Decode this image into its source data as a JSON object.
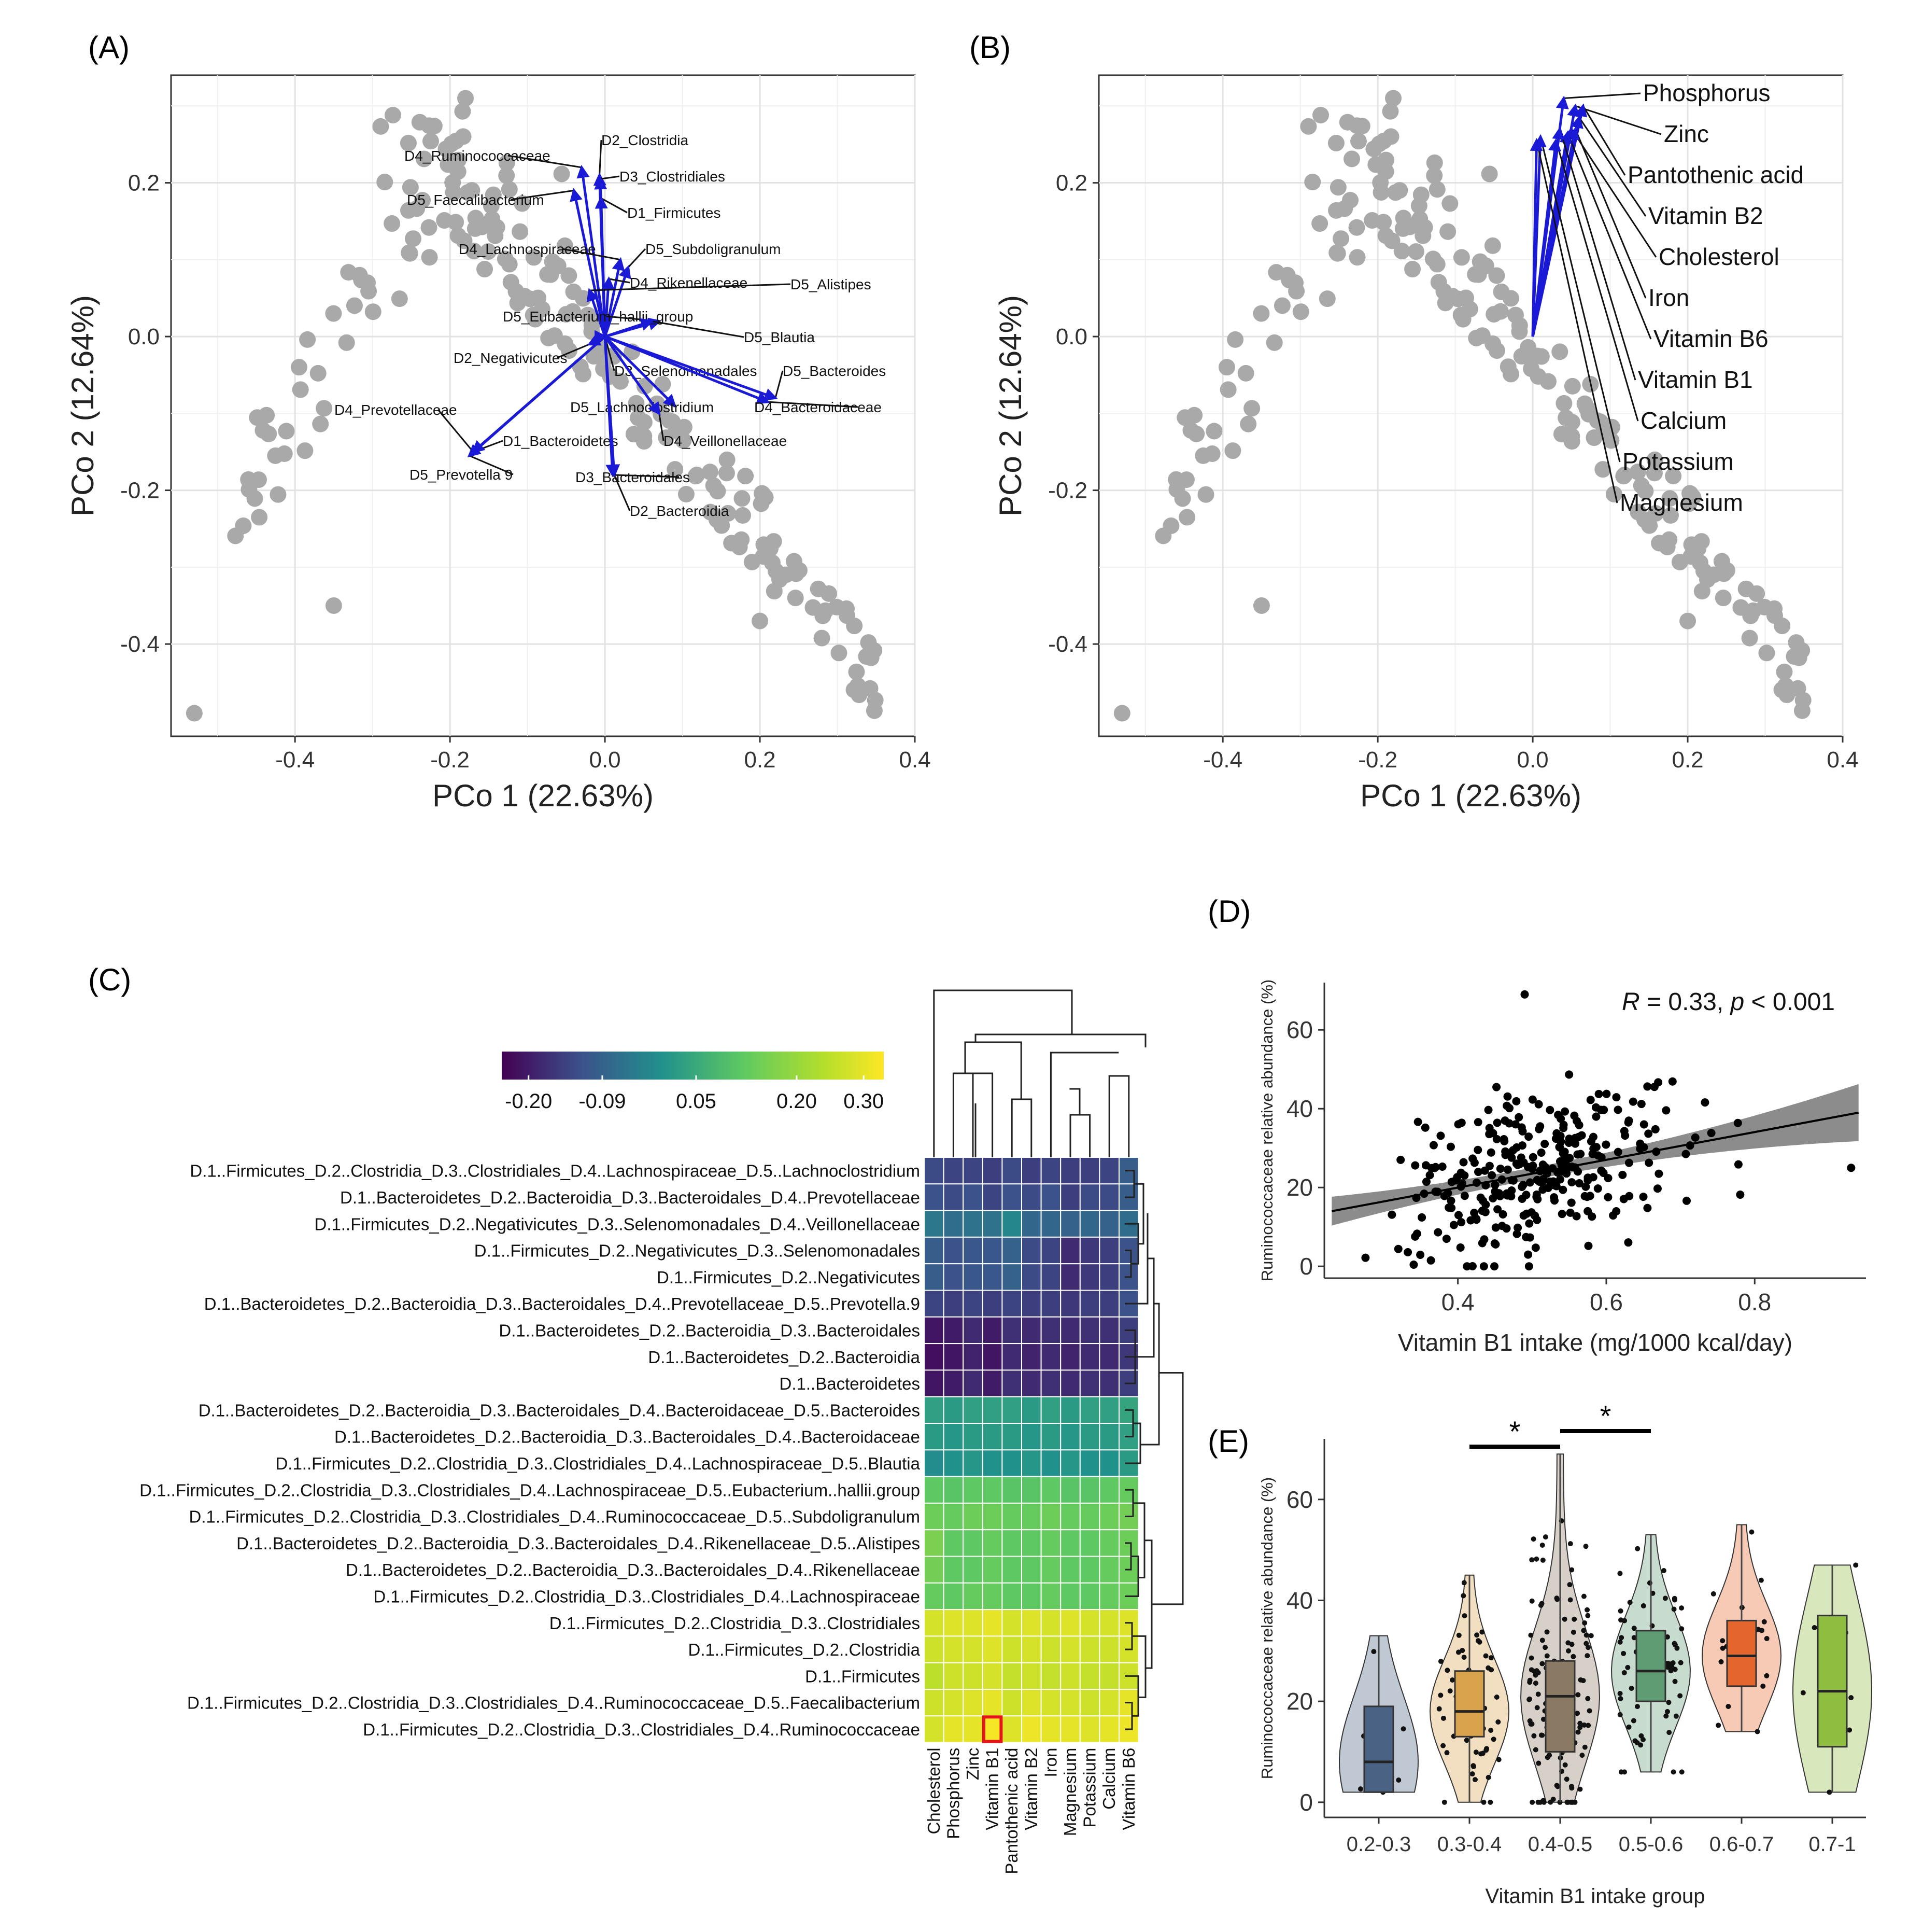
{
  "chart_data": [
    {
      "panel": "(A)",
      "type": "scatter",
      "xlabel": "PCo 1 (22.63%)",
      "ylabel": "PCo 2 (12.64%)",
      "xlim": [
        -0.56,
        0.4
      ],
      "ylim": [
        -0.52,
        0.34
      ],
      "xticks": [
        "-0.4",
        "-0.2",
        "0.0",
        "0.2",
        "0.4"
      ],
      "xtick_values": [
        -0.4,
        -0.2,
        0.0,
        0.2,
        0.4
      ],
      "yticks": [
        "-0.4",
        "-0.2",
        "0.0",
        "0.2"
      ],
      "ytick_values": [
        -0.4,
        -0.2,
        0.0,
        0.2
      ],
      "vectors": [
        {
          "label": "D2_Clostridia",
          "x": -0.007,
          "y": 0.21
        },
        {
          "label": "D3_Clostridiales",
          "x": -0.006,
          "y": 0.205
        },
        {
          "label": "D4_Ruminococcaceae",
          "x": -0.03,
          "y": 0.22
        },
        {
          "label": "D5_Faecalibacterium",
          "x": -0.04,
          "y": 0.19
        },
        {
          "label": "D1_Firmicutes",
          "x": -0.005,
          "y": 0.18
        },
        {
          "label": "D4_Lachnospiraceae",
          "x": 0.02,
          "y": 0.1
        },
        {
          "label": "D5_Subdoligranulum",
          "x": 0.03,
          "y": 0.09
        },
        {
          "label": "D4_Rikenellaceae",
          "x": 0.005,
          "y": 0.075
        },
        {
          "label": "D5_Alistipes",
          "x": -0.02,
          "y": 0.06
        },
        {
          "label": "D5_Eubacterium_hallii_group",
          "x": 0.07,
          "y": 0.02
        },
        {
          "label": "D5_Blautia",
          "x": 0.06,
          "y": 0.02
        },
        {
          "label": "D2_Negativicutes",
          "x": -0.02,
          "y": -0.01
        },
        {
          "label": "D3_Selenomonadales",
          "x": 0.0,
          "y": 0.0
        },
        {
          "label": "D5_Bacteroides",
          "x": 0.22,
          "y": -0.08
        },
        {
          "label": "D4_Prevotellaceae",
          "x": -0.17,
          "y": -0.15
        },
        {
          "label": "D5_Lachnoclostridium",
          "x": 0.09,
          "y": -0.09
        },
        {
          "label": "D4_Bacteroidaceae",
          "x": 0.21,
          "y": -0.085
        },
        {
          "label": "D1_Bacteroidetes",
          "x": -0.17,
          "y": -0.15
        },
        {
          "label": "D4_Veillonellaceae",
          "x": 0.07,
          "y": -0.1
        },
        {
          "label": "D5_Prevotella 9",
          "x": -0.175,
          "y": -0.155
        },
        {
          "label": "D3_Bacteroidales",
          "x": 0.01,
          "y": -0.18
        },
        {
          "label": "D2_Bacteroidia",
          "x": 0.012,
          "y": -0.18
        }
      ]
    },
    {
      "panel": "(B)",
      "type": "scatter",
      "xlabel": "PCo 1 (22.63%)",
      "ylabel": "PCo 2 (12.64%)",
      "xlim": [
        -0.56,
        0.4
      ],
      "ylim": [
        -0.52,
        0.34
      ],
      "xticks": [
        "-0.4",
        "-0.2",
        "0.0",
        "0.2",
        "0.4"
      ],
      "xtick_values": [
        -0.4,
        -0.2,
        0.0,
        0.2,
        0.4
      ],
      "yticks": [
        "-0.4",
        "-0.2",
        "0.0",
        "0.2"
      ],
      "ytick_values": [
        -0.4,
        -0.2,
        0.0,
        0.2
      ],
      "vectors": [
        {
          "label": "Phosphorus",
          "x": 0.04,
          "y": 0.31
        },
        {
          "label": "Zinc",
          "x": 0.055,
          "y": 0.3
        },
        {
          "label": "Pantothenic acid",
          "x": 0.065,
          "y": 0.3
        },
        {
          "label": "Vitamin B2",
          "x": 0.06,
          "y": 0.285
        },
        {
          "label": "Cholesterol",
          "x": 0.05,
          "y": 0.27
        },
        {
          "label": "Iron",
          "x": 0.055,
          "y": 0.27
        },
        {
          "label": "Vitamin B6",
          "x": 0.045,
          "y": 0.265
        },
        {
          "label": "Vitamin B1",
          "x": 0.035,
          "y": 0.27
        },
        {
          "label": "Calcium",
          "x": 0.03,
          "y": 0.255
        },
        {
          "label": "Potassium",
          "x": 0.01,
          "y": 0.26
        },
        {
          "label": "Magnesium",
          "x": 0.005,
          "y": 0.255
        }
      ]
    },
    {
      "panel": "(C)",
      "type": "heatmap",
      "colorbar_ticks": [
        "-0.20",
        "-0.09",
        "0.05",
        "0.20",
        "0.30"
      ],
      "colorbar_range": [
        -0.24,
        0.33
      ],
      "columns": [
        "Cholesterol",
        "Phosphorus",
        "Zinc",
        "Vitamin B1",
        "Pantothenic acid",
        "Vitamin B2",
        "Iron",
        "Magnesium",
        "Potassium",
        "Calcium",
        "Vitamin B6"
      ],
      "rows": [
        "D.1..Firmicutes_D.2..Clostridia_D.3..Clostridiales_D.4..Lachnospiraceae_D.5..Lachnoclostridium",
        "D.1..Bacteroidetes_D.2..Bacteroidia_D.3..Bacteroidales_D.4..Prevotellaceae",
        "D.1..Firmicutes_D.2..Negativicutes_D.3..Selenomonadales_D.4..Veillonellaceae",
        "D.1..Firmicutes_D.2..Negativicutes_D.3..Selenomonadales",
        "D.1..Firmicutes_D.2..Negativicutes",
        "D.1..Bacteroidetes_D.2..Bacteroidia_D.3..Bacteroidales_D.4..Prevotellaceae_D.5..Prevotella.9",
        "D.1..Bacteroidetes_D.2..Bacteroidia_D.3..Bacteroidales",
        "D.1..Bacteroidetes_D.2..Bacteroidia",
        "D.1..Bacteroidetes",
        "D.1..Bacteroidetes_D.2..Bacteroidia_D.3..Bacteroidales_D.4..Bacteroidaceae_D.5..Bacteroides",
        "D.1..Bacteroidetes_D.2..Bacteroidia_D.3..Bacteroidales_D.4..Bacteroidaceae",
        "D.1..Firmicutes_D.2..Clostridia_D.3..Clostridiales_D.4..Lachnospiraceae_D.5..Blautia",
        "D.1..Firmicutes_D.2..Clostridia_D.3..Clostridiales_D.4..Lachnospiraceae_D.5..Eubacterium..hallii.group",
        "D.1..Firmicutes_D.2..Clostridia_D.3..Clostridiales_D.4..Ruminococcaceae_D.5..Subdoligranulum",
        "D.1..Bacteroidetes_D.2..Bacteroidia_D.3..Bacteroidales_D.4..Rikenellaceae_D.5..Alistipes",
        "D.1..Bacteroidetes_D.2..Bacteroidia_D.3..Bacteroidales_D.4..Rikenellaceae",
        "D.1..Firmicutes_D.2..Clostridia_D.3..Clostridiales_D.4..Lachnospiraceae",
        "D.1..Firmicutes_D.2..Clostridia_D.3..Clostridiales",
        "D.1..Firmicutes_D.2..Clostridia",
        "D.1..Firmicutes",
        "D.1..Firmicutes_D.2..Clostridia_D.3..Clostridiales_D.4..Ruminococcaceae_D.5..Faecalibacterium",
        "D.1..Firmicutes_D.2..Clostridia_D.3..Clostridiales_D.4..Ruminococcaceae"
      ],
      "values": [
        [
          -0.13,
          -0.14,
          -0.14,
          -0.15,
          -0.13,
          -0.15,
          -0.14,
          -0.15,
          -0.15,
          -0.14,
          -0.1
        ],
        [
          -0.12,
          -0.13,
          -0.12,
          -0.14,
          -0.12,
          -0.13,
          -0.12,
          -0.15,
          -0.13,
          -0.13,
          -0.1
        ],
        [
          -0.05,
          -0.07,
          -0.06,
          -0.06,
          -0.02,
          -0.08,
          -0.08,
          -0.09,
          -0.08,
          -0.09,
          -0.07
        ],
        [
          -0.1,
          -0.12,
          -0.11,
          -0.11,
          -0.09,
          -0.13,
          -0.14,
          -0.18,
          -0.16,
          -0.15,
          -0.12
        ],
        [
          -0.1,
          -0.12,
          -0.11,
          -0.11,
          -0.09,
          -0.13,
          -0.14,
          -0.18,
          -0.16,
          -0.15,
          -0.12
        ],
        [
          -0.14,
          -0.15,
          -0.14,
          -0.15,
          -0.14,
          -0.15,
          -0.15,
          -0.16,
          -0.15,
          -0.15,
          -0.12
        ],
        [
          -0.21,
          -0.2,
          -0.18,
          -0.2,
          -0.17,
          -0.18,
          -0.17,
          -0.18,
          -0.17,
          -0.17,
          -0.15
        ],
        [
          -0.22,
          -0.21,
          -0.19,
          -0.21,
          -0.18,
          -0.19,
          -0.18,
          -0.19,
          -0.18,
          -0.18,
          -0.16
        ],
        [
          -0.21,
          -0.2,
          -0.18,
          -0.2,
          -0.17,
          -0.18,
          -0.17,
          -0.18,
          -0.17,
          -0.17,
          -0.15
        ],
        [
          0.03,
          0.02,
          0.03,
          0.03,
          0.03,
          0.02,
          0.03,
          0.02,
          0.03,
          0.03,
          0.04
        ],
        [
          0.02,
          0.01,
          0.02,
          0.02,
          0.02,
          0.01,
          0.02,
          0.01,
          0.02,
          0.02,
          0.03
        ],
        [
          -0.01,
          0.0,
          0.01,
          0.0,
          0.0,
          0.01,
          0.0,
          0.01,
          0.0,
          0.0,
          0.02
        ],
        [
          0.12,
          0.11,
          0.12,
          0.12,
          0.11,
          0.11,
          0.12,
          0.11,
          0.11,
          0.12,
          0.13
        ],
        [
          0.14,
          0.13,
          0.14,
          0.14,
          0.13,
          0.13,
          0.14,
          0.13,
          0.13,
          0.14,
          0.15
        ],
        [
          0.16,
          0.12,
          0.12,
          0.13,
          0.12,
          0.12,
          0.13,
          0.12,
          0.12,
          0.13,
          0.14
        ],
        [
          0.15,
          0.12,
          0.12,
          0.13,
          0.12,
          0.12,
          0.13,
          0.12,
          0.12,
          0.13,
          0.14
        ],
        [
          0.13,
          0.12,
          0.13,
          0.13,
          0.12,
          0.12,
          0.13,
          0.12,
          0.12,
          0.13,
          0.14
        ],
        [
          0.28,
          0.29,
          0.29,
          0.3,
          0.28,
          0.29,
          0.28,
          0.29,
          0.28,
          0.28,
          0.29
        ],
        [
          0.27,
          0.28,
          0.28,
          0.29,
          0.27,
          0.28,
          0.27,
          0.28,
          0.27,
          0.27,
          0.28
        ],
        [
          0.25,
          0.27,
          0.27,
          0.28,
          0.26,
          0.27,
          0.26,
          0.27,
          0.26,
          0.26,
          0.27
        ],
        [
          0.27,
          0.28,
          0.29,
          0.3,
          0.27,
          0.29,
          0.28,
          0.28,
          0.27,
          0.28,
          0.3
        ],
        [
          0.28,
          0.3,
          0.3,
          0.32,
          0.29,
          0.31,
          0.3,
          0.3,
          0.29,
          0.3,
          0.31
        ]
      ],
      "highlight": {
        "row": 21,
        "col": 3
      }
    },
    {
      "panel": "(D)",
      "type": "scatter",
      "xlabel": "Vitamin B1 intake (mg/1000 kcal/day)",
      "ylabel": "Ruminococcaceae relative abundance (%)",
      "annotation_r": "R",
      "annotation_rest": " = 0.33, ",
      "annotation_p": "p",
      "annotation_end": " < 0.001",
      "xlim": [
        0.22,
        0.95
      ],
      "ylim": [
        -3,
        72
      ],
      "xticks": [
        "0.4",
        "0.6",
        "0.8"
      ],
      "xtick_values": [
        0.4,
        0.6,
        0.8
      ],
      "yticks": [
        "0",
        "20",
        "40",
        "60"
      ],
      "ytick_values": [
        0,
        20,
        40,
        60
      ],
      "regression": {
        "x0": 0.23,
        "y0": 14,
        "x1": 0.94,
        "y1": 39
      }
    },
    {
      "panel": "(E)",
      "type": "box",
      "xlabel": "Vitamin B1 intake group",
      "ylabel": "Ruminococcaceae relative abundance (%)",
      "ylim": [
        -3,
        72
      ],
      "yticks": [
        "0",
        "20",
        "40",
        "60"
      ],
      "ytick_values": [
        0,
        20,
        40,
        60
      ],
      "significance": "*",
      "groups": [
        {
          "label": "0.2-0.3",
          "color": "#4a6283",
          "q1": 2,
          "median": 8,
          "q3": 19,
          "min": 2,
          "max": 33
        },
        {
          "label": "0.3-0.4",
          "color": "#d9a24c",
          "q1": 13,
          "median": 18,
          "q3": 26,
          "min": 0,
          "max": 45
        },
        {
          "label": "0.4-0.5",
          "color": "#8a7963",
          "q1": 10,
          "median": 21,
          "q3": 28,
          "min": 0,
          "max": 69
        },
        {
          "label": "0.5-0.6",
          "color": "#5f9b73",
          "q1": 20,
          "median": 26,
          "q3": 34,
          "min": 6,
          "max": 53
        },
        {
          "label": "0.6-0.7",
          "color": "#e5662c",
          "q1": 23,
          "median": 29,
          "q3": 36,
          "min": 14,
          "max": 55
        },
        {
          "label": "0.7-1",
          "color": "#8fbd40",
          "q1": 11,
          "median": 22,
          "q3": 37,
          "min": 2,
          "max": 47
        }
      ]
    }
  ],
  "panel_labels": {
    "a": "(A)",
    "b": "(B)",
    "c": "(C)",
    "d": "(D)",
    "e": "(E)"
  }
}
